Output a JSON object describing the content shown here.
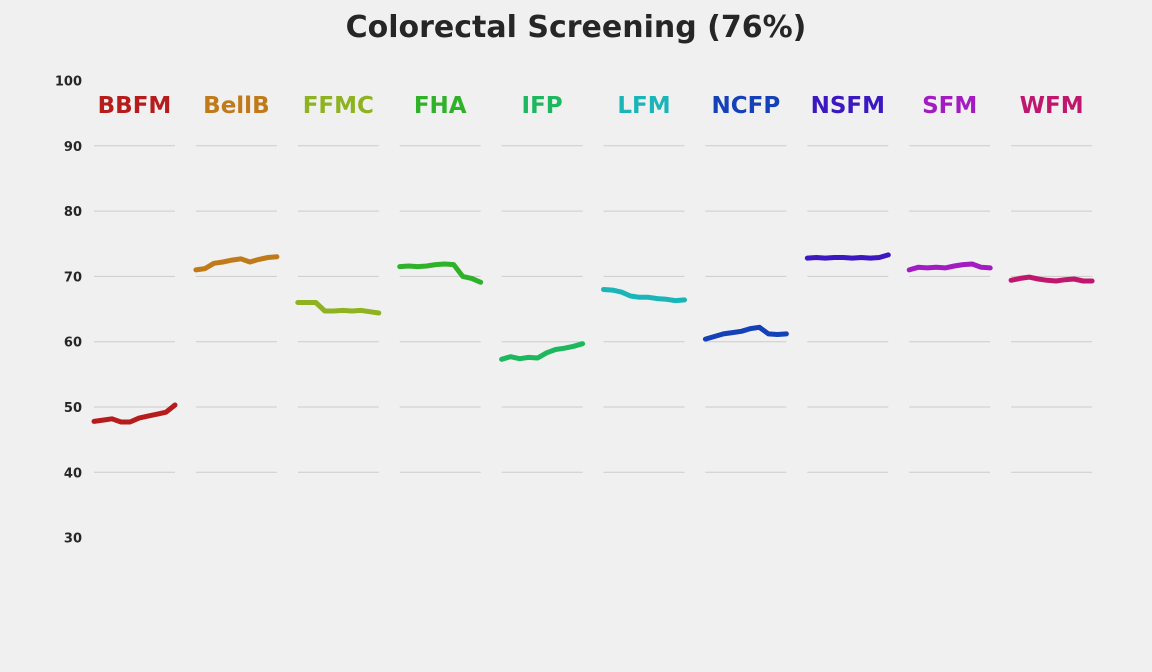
{
  "chart_data": {
    "type": "line",
    "title": "Colorectal Screening (76%)",
    "ylim": [
      30,
      100
    ],
    "yticks": [
      30,
      40,
      50,
      60,
      70,
      80,
      90,
      100
    ],
    "grid": true,
    "series": [
      {
        "name": "BBFM",
        "color": "#b71c1c",
        "values": [
          47.8,
          48.0,
          48.2,
          47.7,
          47.7,
          48.3,
          48.6,
          48.9,
          49.2,
          50.3
        ]
      },
      {
        "name": "BellB",
        "color": "#c07a1a",
        "values": [
          71.0,
          71.2,
          72.0,
          72.2,
          72.5,
          72.7,
          72.2,
          72.6,
          72.9,
          73.0
        ]
      },
      {
        "name": "FFMC",
        "color": "#8fb320",
        "values": [
          66.0,
          66.0,
          66.0,
          64.7,
          64.7,
          64.8,
          64.7,
          64.8,
          64.6,
          64.4
        ]
      },
      {
        "name": "FHA",
        "color": "#2fb22a",
        "values": [
          71.5,
          71.6,
          71.5,
          71.6,
          71.8,
          71.9,
          71.8,
          70.0,
          69.7,
          69.1
        ]
      },
      {
        "name": "IFP",
        "color": "#1db85d",
        "values": [
          57.3,
          57.7,
          57.4,
          57.6,
          57.5,
          58.3,
          58.8,
          59.0,
          59.3,
          59.7
        ]
      },
      {
        "name": "LFM",
        "color": "#1ab5b8",
        "values": [
          68.0,
          67.9,
          67.6,
          67.0,
          66.8,
          66.8,
          66.6,
          66.5,
          66.3,
          66.4
        ]
      },
      {
        "name": "NCFP",
        "color": "#1440b8",
        "values": [
          60.4,
          60.8,
          61.2,
          61.4,
          61.6,
          62.0,
          62.2,
          61.2,
          61.1,
          61.2
        ]
      },
      {
        "name": "NSFM",
        "color": "#3c18c0",
        "values": [
          72.8,
          72.9,
          72.8,
          72.9,
          72.9,
          72.8,
          72.9,
          72.8,
          72.9,
          73.3
        ]
      },
      {
        "name": "SFM",
        "color": "#a31cc2",
        "values": [
          71.0,
          71.4,
          71.3,
          71.4,
          71.3,
          71.6,
          71.8,
          71.9,
          71.4,
          71.3
        ]
      },
      {
        "name": "WFM",
        "color": "#c0176e",
        "values": [
          69.4,
          69.7,
          69.9,
          69.6,
          69.4,
          69.3,
          69.5,
          69.6,
          69.3,
          69.3
        ]
      }
    ]
  }
}
